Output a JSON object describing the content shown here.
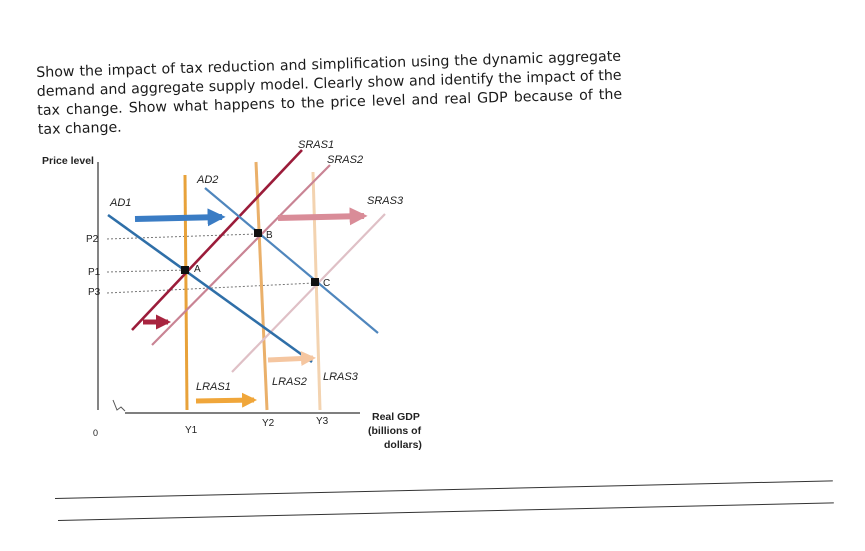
{
  "question": "Show the impact of tax reduction and simplification using the dynamic aggregate demand and aggregate supply model. Clearly show and identify the impact of the tax change. Show what happens to the price level and real GDP because of the tax change.",
  "diagram": {
    "y_axis_label": "Price level",
    "x_axis_label_lines": [
      "Real GDP",
      "(billions of",
      "dollars)"
    ],
    "origin_label": "0",
    "price_ticks": [
      "P2",
      "P1",
      "P3"
    ],
    "gdp_ticks": [
      "Y1",
      "Y2",
      "Y3"
    ],
    "curve_labels": {
      "ad1": "AD1",
      "ad2": "AD2",
      "sras1": "SRAS1",
      "sras2": "SRAS2",
      "sras3": "SRAS3",
      "lras1": "LRAS1",
      "lras2": "LRAS2",
      "lras3": "LRAS3"
    },
    "points": [
      "A",
      "B",
      "C"
    ],
    "colors": {
      "ad": "#2f6fa8",
      "sras1": "#9b1c3a",
      "sras_shift": "#d9a3ae",
      "lras1": "#e8a23a",
      "lras_shift": "#f3d3b0",
      "arrow_blue": "#3a7cc4",
      "arrow_red": "#a8243f",
      "arrow_pink": "#d98c98",
      "arrow_orange": "#f0a63a",
      "arrow_peach": "#f5c6a0"
    }
  }
}
